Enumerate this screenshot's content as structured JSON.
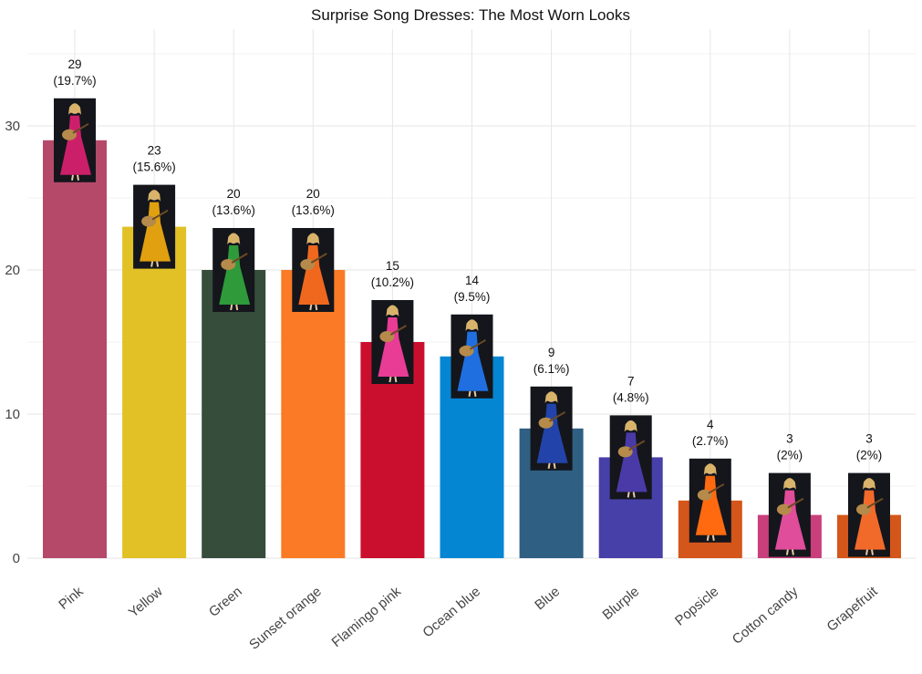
{
  "chart_data": {
    "type": "bar",
    "title": "Surprise Song Dresses: The Most Worn Looks",
    "xlabel": "",
    "ylabel": "",
    "ylim": [
      0,
      35
    ],
    "yticks": [
      0,
      10,
      20,
      30
    ],
    "grid": true,
    "legend": "none",
    "categories": [
      "Pink",
      "Yellow",
      "Green",
      "Sunset orange",
      "Flamingo pink",
      "Ocean blue",
      "Blue",
      "Blurple",
      "Popsicle",
      "Cotton candy",
      "Grapefruit"
    ],
    "values": [
      29,
      23,
      20,
      20,
      15,
      14,
      9,
      7,
      4,
      3,
      3
    ],
    "percent_labels": [
      "(19.7%)",
      "(15.6%)",
      "(13.6%)",
      "(13.6%)",
      "(10.2%)",
      "(9.5%)",
      "(6.1%)",
      "(4.8%)",
      "(2.7%)",
      "(2%)",
      "(2%)"
    ],
    "colors": [
      "#b5496a",
      "#e1c125",
      "#364d3c",
      "#fb7a26",
      "#ca0f2e",
      "#0586d3",
      "#2f5f82",
      "#4740a9",
      "#d4561a",
      "#c93f7c",
      "#d4561a"
    ],
    "dress_colors": [
      "#cc1f6a",
      "#e0a010",
      "#2f9a3a",
      "#f0681e",
      "#e83c95",
      "#1f6fe0",
      "#2244aa",
      "#4a3aa8",
      "#ff6a10",
      "#e04d9a",
      "#f26a2a"
    ]
  }
}
